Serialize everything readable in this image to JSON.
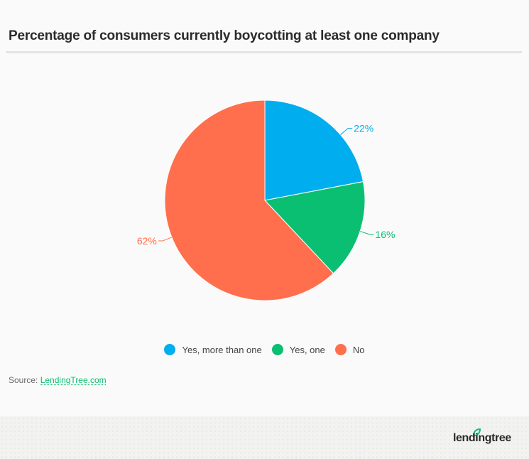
{
  "title": "Percentage of consumers currently boycotting at least one company",
  "chart_data": {
    "type": "pie",
    "title": "Percentage of consumers currently boycotting at least one company",
    "categories": [
      "Yes, more than one",
      "Yes, one",
      "No"
    ],
    "values": [
      22,
      16,
      62
    ],
    "unit": "%",
    "colors": [
      "#00aeef",
      "#0bbf72",
      "#ff6f4d"
    ],
    "data_labels": [
      "22%",
      "16%",
      "62%"
    ],
    "start_angle_deg": 0,
    "direction": "clockwise",
    "legend_position": "bottom"
  },
  "legend": [
    {
      "label": "Yes, more than one",
      "color": "#00aeef"
    },
    {
      "label": "Yes, one",
      "color": "#0bbf72"
    },
    {
      "label": "No",
      "color": "#ff6f4d"
    }
  ],
  "source": {
    "prefix": "Source:",
    "link_text": "LendingTree.com"
  },
  "footer": {
    "logo_text": "lendingtree"
  }
}
